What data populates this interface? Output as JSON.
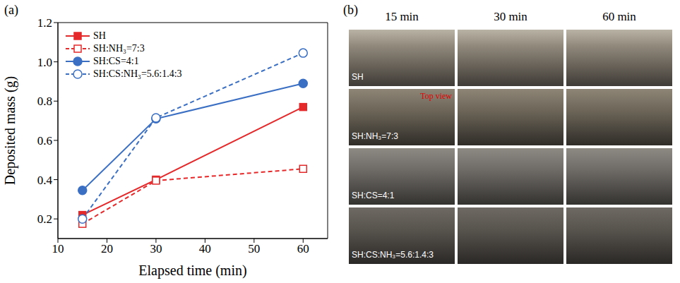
{
  "panel_labels": [
    "(a)",
    "(b)"
  ],
  "chart_data": {
    "type": "line",
    "x_label": "Elapsed time (min)",
    "y_label": "Deposited mass (g)",
    "x": [
      15,
      30,
      60
    ],
    "xlim": [
      10,
      65
    ],
    "xticks": [
      10,
      20,
      30,
      40,
      50,
      60
    ],
    "ylim": [
      0.1,
      1.2
    ],
    "yticks": [
      0.2,
      0.4,
      0.6,
      0.8,
      {
        "value": 1,
        "label": "1.0"
      },
      1.2
    ],
    "grid": false,
    "legend": "upper left",
    "series": [
      {
        "name": "SH",
        "color": "#e5282a",
        "marker": "square",
        "line_style": "solid",
        "values": [
          0.22,
          0.4,
          0.77
        ]
      },
      {
        "name": "SH:NH₃=7:3",
        "color": "#e5282a",
        "marker": "square_open",
        "line_style": "dashed",
        "values": [
          0.175,
          0.395,
          0.455
        ]
      },
      {
        "name": "SH:CS=4:1",
        "color": "#3a6fc4",
        "marker": "circle",
        "line_style": "solid",
        "values": [
          0.345,
          0.71,
          0.89
        ]
      },
      {
        "name": "SH:CS:NH₃=5.6:1.4:3",
        "color": "#3a6fc4",
        "marker": "circle_open",
        "line_style": "dashed",
        "values": [
          0.2,
          0.715,
          1.045
        ]
      }
    ]
  },
  "photo_grid": {
    "columns": [
      "15 min",
      "30 min",
      "60 min"
    ],
    "rows": [
      {
        "label": "SH"
      },
      {
        "label": "SH:NH₃=7:3",
        "annotation": "Top view"
      },
      {
        "label": "SH:CS=4:1"
      },
      {
        "label": "SH:CS:NH₃=5.6:1.4:3"
      }
    ]
  }
}
